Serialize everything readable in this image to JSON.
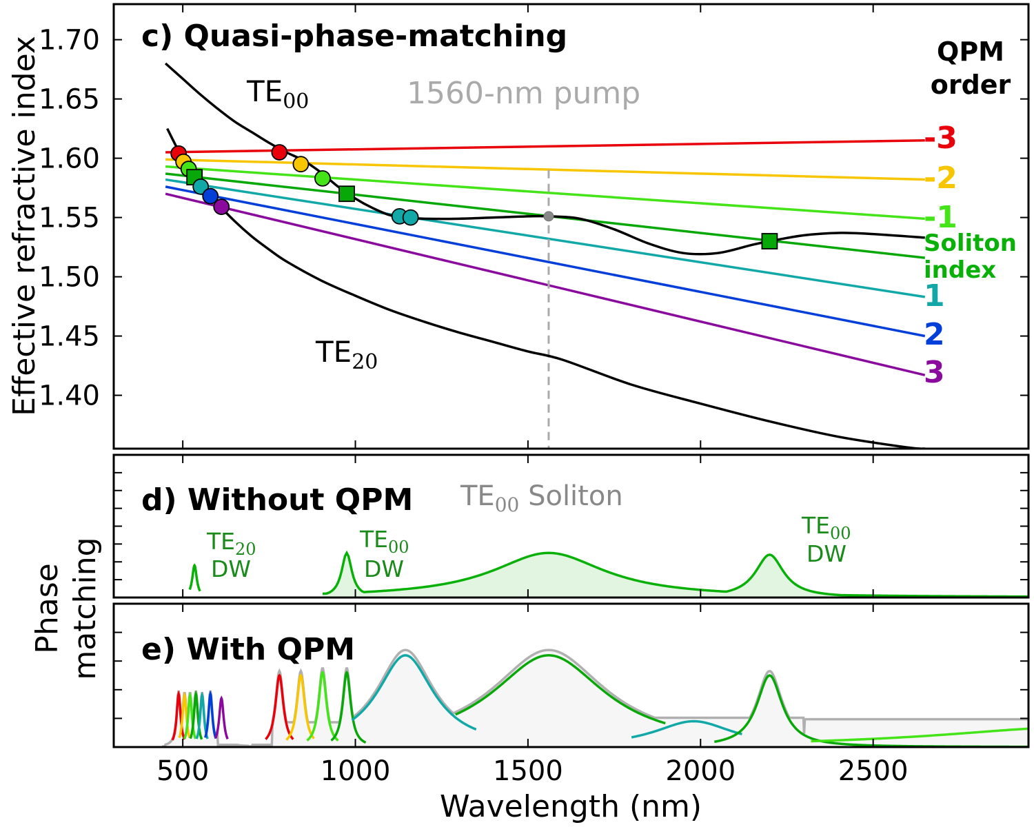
{
  "chart_data": [
    {
      "panel": "c",
      "type": "line",
      "title": "c) Quasi-phase-matching",
      "xlabel": "Wavelength (nm)",
      "ylabel": "Effective refractive index",
      "xlim": [
        300,
        2950
      ],
      "ylim": [
        1.355,
        1.73
      ],
      "xticks": [
        500,
        1000,
        1500,
        2000,
        2500
      ],
      "xtick_labels": [
        "500",
        "1000",
        "1500",
        "2000",
        "2500"
      ],
      "yticks": [
        1.4,
        1.45,
        1.5,
        1.55,
        1.6,
        1.65,
        1.7
      ],
      "ytick_labels": [
        "1.40",
        "1.45",
        "1.50",
        "1.55",
        "1.60",
        "1.65",
        "1.70"
      ],
      "grid": false,
      "mode_curves": [
        {
          "name": "TE00",
          "label_base": "TE",
          "label_sub": "00",
          "color": "#000000",
          "x": [
            450,
            500,
            550,
            600,
            650,
            700,
            750,
            800,
            850,
            900,
            950,
            1000,
            1050,
            1100,
            1150,
            1200,
            1300,
            1400,
            1500,
            1560,
            1650,
            1750,
            1850,
            1950,
            2050,
            2150,
            2200,
            2300,
            2400,
            2500,
            2650
          ],
          "y": [
            1.68,
            1.667,
            1.654,
            1.642,
            1.631,
            1.622,
            1.613,
            1.605,
            1.598,
            1.588,
            1.576,
            1.566,
            1.558,
            1.552,
            1.55,
            1.549,
            1.549,
            1.55,
            1.551,
            1.551,
            1.549,
            1.54,
            1.528,
            1.52,
            1.52,
            1.527,
            1.53,
            1.535,
            1.537,
            1.536,
            1.533
          ]
        },
        {
          "name": "TE20",
          "label_base": "TE",
          "label_sub": "20",
          "color": "#000000",
          "x": [
            455,
            500,
            550,
            600,
            650,
            700,
            750,
            800,
            900,
            1000,
            1100,
            1200,
            1300,
            1400,
            1500,
            1600,
            1800,
            2000,
            2200,
            2400,
            2600,
            2650
          ],
          "y": [
            1.625,
            1.6,
            1.58,
            1.562,
            1.547,
            1.534,
            1.523,
            1.513,
            1.497,
            1.484,
            1.472,
            1.462,
            1.453,
            1.445,
            1.437,
            1.43,
            1.409,
            1.393,
            1.378,
            1.365,
            1.356,
            1.355
          ]
        }
      ],
      "qpm_series": [
        {
          "order": "-3",
          "color": "#e8000b",
          "x": [
            450,
            2650
          ],
          "y": [
            1.605,
            1.615
          ]
        },
        {
          "order": "-2",
          "color": "#f7c600",
          "x": [
            450,
            2650
          ],
          "y": [
            1.599,
            1.582
          ]
        },
        {
          "order": "-1",
          "color": "#44e419",
          "x": [
            450,
            2650
          ],
          "y": [
            1.593,
            1.549
          ]
        },
        {
          "order": "Soliton index",
          "color": "#08a808",
          "x": [
            450,
            2650
          ],
          "y": [
            1.587,
            1.516
          ]
        },
        {
          "order": "1",
          "color": "#12a8a8",
          "x": [
            450,
            2650
          ],
          "y": [
            1.582,
            1.483
          ]
        },
        {
          "order": "2",
          "color": "#023fd8",
          "x": [
            450,
            2650
          ],
          "y": [
            1.576,
            1.45
          ]
        },
        {
          "order": "3",
          "color": "#8b0a9e",
          "x": [
            450,
            2650
          ],
          "y": [
            1.57,
            1.417
          ]
        }
      ],
      "qpm_points": [
        {
          "x": 488,
          "y": 1.604,
          "color": "#e8000b",
          "marker": "circle"
        },
        {
          "x": 502,
          "y": 1.597,
          "color": "#f7c600",
          "marker": "circle"
        },
        {
          "x": 517,
          "y": 1.591,
          "color": "#44e419",
          "marker": "circle"
        },
        {
          "x": 534,
          "y": 1.584,
          "color": "#08a808",
          "marker": "square"
        },
        {
          "x": 552,
          "y": 1.576,
          "color": "#12a8a8",
          "marker": "circle"
        },
        {
          "x": 580,
          "y": 1.568,
          "color": "#023fd8",
          "marker": "circle"
        },
        {
          "x": 612,
          "y": 1.559,
          "color": "#8b0a9e",
          "marker": "circle"
        },
        {
          "x": 780,
          "y": 1.605,
          "color": "#e8000b",
          "marker": "circle"
        },
        {
          "x": 842,
          "y": 1.595,
          "color": "#f7c600",
          "marker": "circle"
        },
        {
          "x": 905,
          "y": 1.583,
          "color": "#44e419",
          "marker": "circle"
        },
        {
          "x": 975,
          "y": 1.57,
          "color": "#08a808",
          "marker": "square"
        },
        {
          "x": 1128,
          "y": 1.551,
          "color": "#12a8a8",
          "marker": "circle"
        },
        {
          "x": 1160,
          "y": 1.55,
          "color": "#12a8a8",
          "marker": "circle"
        },
        {
          "x": 1560,
          "y": 1.551,
          "color": "#888888",
          "marker": "small-circle"
        },
        {
          "x": 2200,
          "y": 1.53,
          "color": "#08a808",
          "marker": "square"
        }
      ],
      "pump": {
        "x": 1560,
        "label": "1560-nm pump",
        "color": "#aaaaaa"
      },
      "legend_title": "QPM order",
      "annotations": {
        "te00_pos": [
          780,
          1.655
        ],
        "te20_pos": [
          850,
          1.44
        ]
      }
    },
    {
      "panel": "d",
      "type": "area",
      "title": "d) Without QPM",
      "subtitle_base": "TE",
      "subtitle_sub": "00",
      "subtitle_rest": " Soliton",
      "ylabel": "Phase matching",
      "ylim": [
        0,
        1.6
      ],
      "yticks": [
        0.2,
        0.4,
        0.6,
        0.8,
        1.0,
        1.2,
        1.4
      ],
      "peaks": [
        {
          "center": 534,
          "width": 8,
          "amp": 0.36,
          "range": [
            520,
            550
          ],
          "fill": false
        },
        {
          "center": 975,
          "width": 18,
          "amp": 0.5,
          "range": [
            905,
            1050
          ],
          "fill": true
        },
        {
          "center": 1560,
          "width": 200,
          "amp": 0.5,
          "range": [
            1050,
            2000
          ],
          "fill": true
        },
        {
          "center": 2200,
          "width": 50,
          "amp": 0.48,
          "range": [
            2000,
            2950
          ],
          "fill": true
        }
      ],
      "series_color": "#08b008",
      "dw_labels": [
        {
          "base": "TE",
          "sub": "20",
          "line2": "DW",
          "x": 600,
          "y": 0.38
        },
        {
          "base": "TE",
          "sub": "00",
          "line2": "DW",
          "x": 1090,
          "y": 0.38
        },
        {
          "base": "TE",
          "sub": "00",
          "line2": "DW",
          "x": 2400,
          "y": 0.47
        }
      ]
    },
    {
      "panel": "e",
      "type": "line",
      "title": "e) With QPM",
      "ylim": [
        0,
        1.0
      ],
      "yticks": [
        0.2,
        0.4,
        0.6,
        0.8
      ],
      "envelope_color": "#b0b0b0",
      "peaks": [
        {
          "order": "-3",
          "color": "#e8000b",
          "center": 488,
          "width": 7,
          "amp": 0.37,
          "range": [
            470,
            505
          ]
        },
        {
          "order": "-2",
          "color": "#f7c600",
          "center": 505,
          "width": 7,
          "amp": 0.36,
          "range": [
            490,
            520
          ]
        },
        {
          "order": "-1",
          "color": "#44e419",
          "center": 521,
          "width": 7,
          "amp": 0.36,
          "range": [
            505,
            537
          ]
        },
        {
          "order": "soliton",
          "color": "#08a808",
          "center": 538,
          "width": 7,
          "amp": 0.37,
          "range": [
            522,
            555
          ]
        },
        {
          "order": "1",
          "color": "#12a8a8",
          "center": 556,
          "width": 7,
          "amp": 0.36,
          "range": [
            540,
            572
          ]
        },
        {
          "order": "2",
          "color": "#023fd8",
          "center": 580,
          "width": 7,
          "amp": 0.37,
          "range": [
            565,
            596
          ]
        },
        {
          "order": "3",
          "color": "#8b0a9e",
          "center": 612,
          "width": 8,
          "amp": 0.34,
          "range": [
            595,
            630
          ]
        },
        {
          "order": "-3",
          "color": "#e8000b",
          "center": 780,
          "width": 14,
          "amp": 0.5,
          "range": [
            740,
            820
          ]
        },
        {
          "order": "-2",
          "color": "#f7c600",
          "center": 842,
          "width": 14,
          "amp": 0.5,
          "range": [
            800,
            880
          ]
        },
        {
          "order": "-1",
          "color": "#44e419",
          "center": 905,
          "width": 14,
          "amp": 0.52,
          "range": [
            860,
            950
          ]
        },
        {
          "order": "soliton",
          "color": "#08a808",
          "center": 975,
          "width": 14,
          "amp": 0.52,
          "range": [
            930,
            1030
          ]
        },
        {
          "order": "1",
          "color": "#12a8a8",
          "center": 1145,
          "width": 100,
          "amp": 0.64,
          "range": [
            990,
            1350
          ]
        },
        {
          "order": "soliton",
          "color": "#08a808",
          "center": 1560,
          "width": 200,
          "amp": 0.64,
          "range": [
            1290,
            1900
          ]
        },
        {
          "order": "1",
          "color": "#12a8a8",
          "center": 1980,
          "width": 140,
          "amp": 0.18,
          "range": [
            1800,
            2120
          ]
        },
        {
          "order": "soliton",
          "color": "#08a808",
          "center": 2200,
          "width": 45,
          "amp": 0.5,
          "range": [
            2040,
            2950
          ]
        },
        {
          "order": "-1",
          "color": "#44e419",
          "center": 3100,
          "width": 500,
          "amp": 0.14,
          "range": [
            2320,
            2950
          ]
        }
      ]
    }
  ],
  "legend": {
    "title_line1": "QPM",
    "title_line2": "order",
    "items": [
      {
        "label": "-3",
        "color": "#e8000b"
      },
      {
        "label": "-2",
        "color": "#f7c600"
      },
      {
        "label": "-1",
        "color": "#44e419"
      },
      {
        "label": "Soliton",
        "label2": "index",
        "color": "#08a808"
      },
      {
        "label": "1",
        "color": "#12a8a8"
      },
      {
        "label": "2",
        "color": "#023fd8"
      },
      {
        "label": "3",
        "color": "#8b0a9e"
      }
    ]
  }
}
